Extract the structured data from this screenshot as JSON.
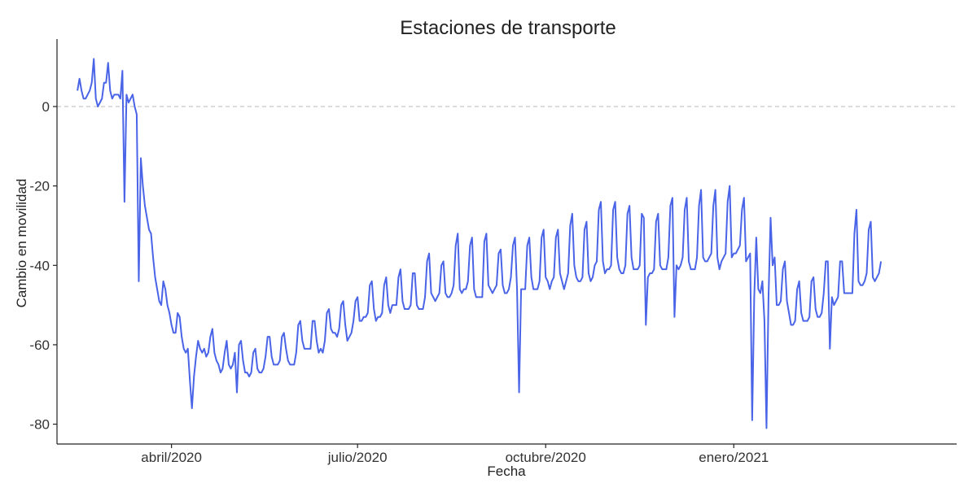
{
  "chart_data": {
    "type": "line",
    "title": "Estaciones de transporte",
    "xlabel": "Fecha",
    "ylabel": "Cambio en movilidad",
    "x_start": "2020-02-15",
    "x_end": "2021-03-26",
    "xlim": [
      "2020-02-05",
      "2021-04-20"
    ],
    "ylim": [
      -85,
      17
    ],
    "x_ticks": [
      {
        "label": "abril/2020",
        "date": "2020-04-01"
      },
      {
        "label": "julio/2020",
        "date": "2020-07-01"
      },
      {
        "label": "octubre/2020",
        "date": "2020-10-01"
      },
      {
        "label": "enero/2021",
        "date": "2021-01-01"
      }
    ],
    "y_ticks": [
      {
        "label": "-80",
        "value": -80
      },
      {
        "label": "-60",
        "value": -60
      },
      {
        "label": "-40",
        "value": -40
      },
      {
        "label": "-20",
        "value": -20
      },
      {
        "label": "0",
        "value": 0
      }
    ],
    "reference_line": {
      "y": 0,
      "style": "dashed",
      "color": "#c8c8c8"
    },
    "grid": false,
    "series": [
      {
        "color": "#4a64e8",
        "values": [
          4,
          7,
          4,
          2,
          2,
          3,
          4,
          6,
          12,
          2,
          0,
          1,
          2,
          6,
          6,
          11,
          4,
          2,
          3,
          3,
          3,
          2,
          9,
          -24,
          3,
          1,
          2,
          3,
          0,
          -2,
          -44,
          -13,
          -20,
          -25,
          -28,
          -31,
          -32,
          -38,
          -43,
          -46,
          -49,
          -50,
          -44,
          -46,
          -50,
          -52,
          -55,
          -57,
          -57,
          -52,
          -53,
          -58,
          -61,
          -62,
          -61,
          -69,
          -76,
          -68,
          -63,
          -59,
          -61,
          -62,
          -61,
          -63,
          -62,
          -58,
          -56,
          -62,
          -64,
          -65,
          -67,
          -66,
          -62,
          -59,
          -65,
          -66,
          -65,
          -62,
          -72,
          -60,
          -59,
          -64,
          -67,
          -67,
          -68,
          -67,
          -62,
          -61,
          -66,
          -67,
          -67,
          -66,
          -63,
          -58,
          -58,
          -63,
          -65,
          -65,
          -65,
          -64,
          -58,
          -57,
          -61,
          -64,
          -65,
          -65,
          -65,
          -62,
          -55,
          -54,
          -59,
          -61,
          -61,
          -61,
          -61,
          -54,
          -54,
          -59,
          -62,
          -61,
          -62,
          -59,
          -52,
          -51,
          -56,
          -57,
          -57,
          -58,
          -56,
          -50,
          -49,
          -55,
          -59,
          -58,
          -57,
          -54,
          -49,
          -48,
          -54,
          -54,
          -53,
          -53,
          -52,
          -45,
          -44,
          -51,
          -54,
          -53,
          -53,
          -52,
          -45,
          -43,
          -50,
          -52,
          -50,
          -50,
          -50,
          -43,
          -41,
          -49,
          -51,
          -51,
          -51,
          -50,
          -42,
          -42,
          -50,
          -51,
          -51,
          -51,
          -48,
          -39,
          -37,
          -47,
          -48,
          -49,
          -48,
          -47,
          -40,
          -39,
          -47,
          -48,
          -48,
          -47,
          -45,
          -35,
          -32,
          -46,
          -47,
          -46,
          -46,
          -44,
          -35,
          -33,
          -46,
          -48,
          -48,
          -48,
          -48,
          -34,
          -32,
          -45,
          -46,
          -47,
          -46,
          -45,
          -37,
          -36,
          -45,
          -47,
          -47,
          -46,
          -43,
          -35,
          -33,
          -46,
          -72,
          -46,
          -46,
          -46,
          -35,
          -33,
          -43,
          -46,
          -46,
          -46,
          -44,
          -33,
          -31,
          -43,
          -44,
          -46,
          -44,
          -43,
          -33,
          -31,
          -42,
          -44,
          -46,
          -44,
          -42,
          -30,
          -27,
          -40,
          -43,
          -44,
          -44,
          -43,
          -31,
          -29,
          -42,
          -44,
          -43,
          -40,
          -39,
          -26,
          -24,
          -39,
          -42,
          -41,
          -41,
          -40,
          -26,
          -24,
          -38,
          -41,
          -42,
          -42,
          -40,
          -27,
          -25,
          -38,
          -41,
          -41,
          -41,
          -40,
          -27,
          -28,
          -55,
          -43,
          -42,
          -42,
          -41,
          -29,
          -27,
          -40,
          -41,
          -41,
          -41,
          -38,
          -25,
          -23,
          -53,
          -40,
          -41,
          -40,
          -38,
          -26,
          -23,
          -39,
          -41,
          -41,
          -41,
          -38,
          -25,
          -21,
          -38,
          -39,
          -39,
          -38,
          -37,
          -25,
          -21,
          -38,
          -41,
          -39,
          -38,
          -37,
          -24,
          -20,
          -38,
          -37,
          -37,
          -36,
          -35,
          -26,
          -23,
          -39,
          -38,
          -37,
          -79,
          -48,
          -33,
          -46,
          -47,
          -44,
          -54,
          -81,
          -48,
          -28,
          -40,
          -38,
          -50,
          -50,
          -49,
          -41,
          -39,
          -49,
          -52,
          -55,
          -55,
          -54,
          -46,
          -44,
          -52,
          -54,
          -54,
          -54,
          -53,
          -44,
          -43,
          -51,
          -53,
          -53,
          -52,
          -47,
          -39,
          -39,
          -61,
          -48,
          -50,
          -49,
          -48,
          -39,
          -39,
          -47,
          -47,
          -47,
          -47,
          -47,
          -32,
          -26,
          -44,
          -45,
          -45,
          -44,
          -42,
          -31,
          -29,
          -43,
          -44,
          -43,
          -42,
          -39
        ]
      }
    ]
  }
}
